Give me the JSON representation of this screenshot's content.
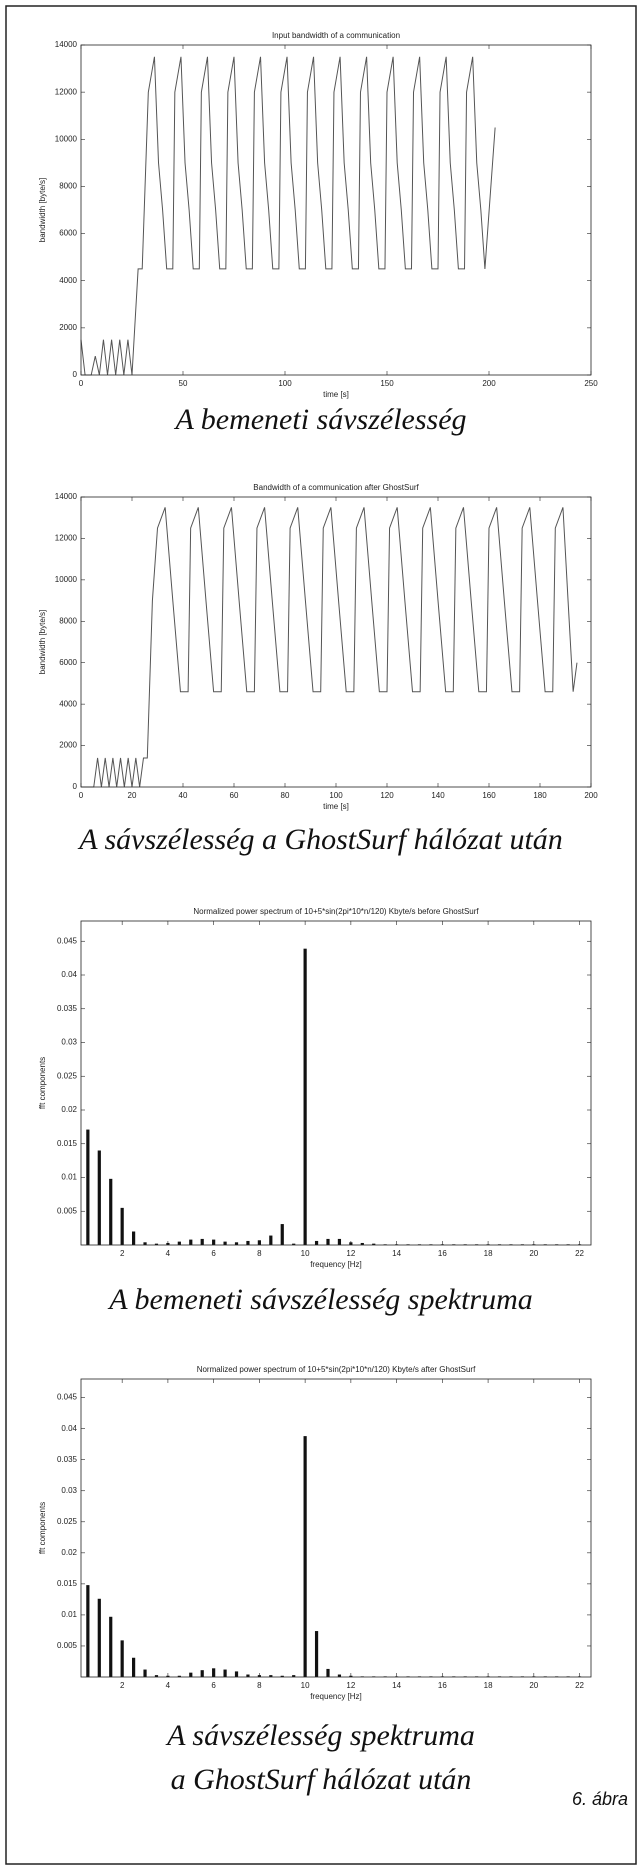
{
  "chart_data": [
    {
      "type": "line",
      "title": "Input bandwidth of a communication",
      "xlabel": "time [s]",
      "ylabel": "bandwidth [byte/s]",
      "color": "#555555",
      "xlim": [
        0,
        250
      ],
      "xticks": [
        0,
        50,
        100,
        150,
        200,
        250
      ],
      "ylim": [
        0,
        14000
      ],
      "yticks": [
        0,
        2000,
        4000,
        6000,
        8000,
        10000,
        12000,
        14000
      ],
      "x": [
        0,
        2,
        5,
        7,
        9,
        11,
        13,
        15,
        17,
        19,
        21,
        23,
        25,
        26,
        28,
        30,
        33,
        36,
        38,
        40,
        42,
        45,
        46,
        49,
        51,
        53,
        55,
        58,
        59,
        62,
        64,
        66,
        68,
        71,
        72,
        75,
        77,
        79,
        81,
        84,
        85,
        88,
        90,
        92,
        94,
        97,
        98,
        101,
        103,
        105,
        107,
        110,
        111,
        114,
        116,
        118,
        120,
        123,
        124,
        127,
        129,
        131,
        133,
        136,
        137,
        140,
        142,
        144,
        146,
        149,
        150,
        153,
        155,
        157,
        159,
        162,
        163,
        166,
        168,
        170,
        172,
        175,
        176,
        179,
        181,
        183,
        185,
        188,
        189,
        192,
        194,
        196,
        198,
        203
      ],
      "values": [
        1500,
        0,
        0,
        800,
        0,
        1500,
        0,
        1500,
        0,
        1500,
        0,
        1500,
        0,
        1500,
        4500,
        4500,
        12000,
        13500,
        9000,
        7000,
        4500,
        4500,
        12000,
        13500,
        9000,
        7000,
        4500,
        4500,
        12000,
        13500,
        9000,
        7000,
        4500,
        4500,
        12000,
        13500,
        9000,
        7000,
        4500,
        4500,
        12000,
        13500,
        9000,
        7000,
        4500,
        4500,
        12000,
        13500,
        9000,
        7000,
        4500,
        4500,
        12000,
        13500,
        9000,
        7000,
        4500,
        4500,
        12000,
        13500,
        9000,
        7000,
        4500,
        4500,
        12000,
        13500,
        9000,
        7000,
        4500,
        4500,
        12000,
        13500,
        9000,
        7000,
        4500,
        4500,
        12000,
        13500,
        9000,
        7000,
        4500,
        4500,
        12000,
        13500,
        9000,
        7000,
        4500,
        4500,
        12000,
        13500,
        9000,
        7000,
        4500,
        10500
      ]
    },
    {
      "type": "line",
      "title": "Bandwidth of a communication after GhostSurf",
      "xlabel": "time [s]",
      "ylabel": "bandwidth [byte/s]",
      "color": "#555555",
      "xlim": [
        0,
        200
      ],
      "xticks": [
        0,
        20,
        40,
        60,
        80,
        100,
        120,
        140,
        160,
        180,
        200
      ],
      "ylim": [
        0,
        14000
      ],
      "yticks": [
        0,
        2000,
        4000,
        6000,
        8000,
        10000,
        12000,
        14000
      ],
      "x": [
        0,
        5,
        6.5,
        8,
        9.5,
        11,
        12.5,
        14,
        15.5,
        17,
        18.5,
        20,
        21.5,
        23,
        24.5,
        26,
        28,
        30,
        33,
        36,
        39,
        42,
        43,
        46,
        49,
        52,
        55,
        56,
        59,
        62,
        65,
        68,
        69,
        72,
        75,
        78,
        81,
        82,
        85,
        88,
        91,
        94,
        95,
        98,
        101,
        104,
        107,
        108,
        111,
        114,
        117,
        120,
        121,
        124,
        127,
        130,
        133,
        134,
        137,
        140,
        143,
        146,
        147,
        150,
        153,
        156,
        159,
        160,
        163,
        166,
        169,
        172,
        173,
        176,
        179,
        182,
        185,
        186,
        189,
        191,
        193,
        194.5
      ],
      "values": [
        0,
        0,
        1400,
        0,
        1400,
        0,
        1400,
        0,
        1400,
        0,
        1400,
        0,
        1400,
        0,
        1400,
        1400,
        9000,
        12500,
        13500,
        9000,
        4600,
        4600,
        12500,
        13500,
        9000,
        4600,
        4600,
        12500,
        13500,
        9000,
        4600,
        4600,
        12500,
        13500,
        9000,
        4600,
        4600,
        12500,
        13500,
        9000,
        4600,
        4600,
        12500,
        13500,
        9000,
        4600,
        4600,
        12500,
        13500,
        9000,
        4600,
        4600,
        12500,
        13500,
        9000,
        4600,
        4600,
        12500,
        13500,
        9000,
        4600,
        4600,
        12500,
        13500,
        9000,
        4600,
        4600,
        12500,
        13500,
        9000,
        4600,
        4600,
        12500,
        13500,
        9000,
        4600,
        4600,
        12500,
        13500,
        9000,
        4600,
        6000
      ]
    },
    {
      "type": "bar",
      "title": "Normalized power spectrum of 10+5*sin(2pi*10*n/120) Kbyte/s before GhostSurf",
      "xlabel": "frequency [Hz]",
      "ylabel": "fft components",
      "color": "#111111",
      "xlim": [
        0.2,
        22.5
      ],
      "xticks": [
        2,
        4,
        6,
        8,
        10,
        12,
        14,
        16,
        18,
        20,
        22
      ],
      "ylim": [
        0,
        0.048
      ],
      "yticks": [
        0.005,
        0.01,
        0.015,
        0.02,
        0.025,
        0.03,
        0.035,
        0.04,
        0.045
      ],
      "x": [
        0.5,
        1,
        1.5,
        2,
        2.5,
        3,
        3.5,
        4,
        4.5,
        5,
        5.5,
        6,
        6.5,
        7,
        7.5,
        8,
        8.5,
        9,
        9.5,
        10,
        10.5,
        11,
        11.5,
        12,
        12.5,
        13,
        13.5,
        14,
        14.5,
        15,
        15.5,
        16,
        16.5,
        17,
        17.5,
        18,
        18.5,
        19,
        19.5,
        20,
        20.5,
        21,
        21.5,
        22
      ],
      "values": [
        0.0171,
        0.014,
        0.0098,
        0.0055,
        0.002,
        0.0004,
        0.0002,
        0.0003,
        0.0005,
        0.0008,
        0.0009,
        0.0008,
        0.0005,
        0.0004,
        0.0006,
        0.0007,
        0.0014,
        0.0031,
        0.0002,
        0.0439,
        0.0006,
        0.0009,
        0.0009,
        0.0004,
        0.0003,
        0.0002,
        0.0001,
        0.0001,
        0.0001,
        0.0001,
        0.0001,
        0.0001,
        0.0001,
        0.0001,
        0.0001,
        0.0001,
        0.0001,
        0.0001,
        0.0001,
        0.0001,
        0.0001,
        0.0001,
        0.0001,
        0.0001
      ]
    },
    {
      "type": "bar",
      "title": "Normalized power spectrum of 10+5*sin(2pi*10*n/120) Kbyte/s after GhostSurf",
      "xlabel": "frequency [Hz]",
      "ylabel": "fft components",
      "color": "#111111",
      "xlim": [
        0.2,
        22.5
      ],
      "xticks": [
        2,
        4,
        6,
        8,
        10,
        12,
        14,
        16,
        18,
        20,
        22
      ],
      "ylim": [
        0,
        0.048
      ],
      "yticks": [
        0.005,
        0.01,
        0.015,
        0.02,
        0.025,
        0.03,
        0.035,
        0.04,
        0.045
      ],
      "x": [
        0.5,
        1,
        1.5,
        2,
        2.5,
        3,
        3.5,
        4,
        4.5,
        5,
        5.5,
        6,
        6.5,
        7,
        7.5,
        8,
        8.5,
        9,
        9.5,
        10,
        10.5,
        11,
        11.5,
        12,
        12.5,
        13,
        13.5,
        14,
        14.5,
        15,
        15.5,
        16,
        16.5,
        17,
        17.5,
        18,
        18.5,
        19,
        19.5,
        20,
        20.5,
        21,
        21.5,
        22
      ],
      "values": [
        0.0148,
        0.0126,
        0.0097,
        0.0059,
        0.0031,
        0.0012,
        0.0003,
        0.0002,
        0.0002,
        0.0007,
        0.0011,
        0.0014,
        0.0012,
        0.0009,
        0.0004,
        0.0003,
        0.0003,
        0.0002,
        0.0003,
        0.0388,
        0.0074,
        0.0013,
        0.0004,
        0.0002,
        0.0001,
        0.0001,
        0.0001,
        0.0001,
        0.0001,
        0.0001,
        0.0001,
        0.0001,
        0.0001,
        0.0001,
        0.0001,
        0.0001,
        0.0001,
        0.0001,
        0.0001,
        0.0001,
        0.0001,
        0.0001,
        0.0001,
        0.0001
      ]
    }
  ],
  "captions": [
    "A bemeneti sávszélesség",
    "A sávszélesség a GhostSurf hálózat után",
    "A bemeneti sávszélesség spektruma",
    "A sávszélesség spektruma",
    "a GhostSurf hálózat után"
  ],
  "figure_label": "6. ábra"
}
